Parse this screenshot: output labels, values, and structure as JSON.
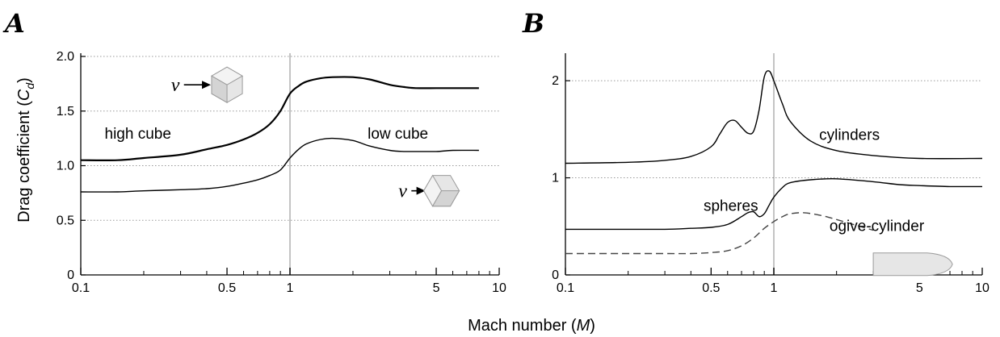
{
  "x_axis_title": {
    "prefix": "Mach number (",
    "symbol": "M",
    "suffix": ")"
  },
  "y_axis_title": {
    "prefix": "Drag coefficient (",
    "symbol": "C",
    "subscript": "d",
    "suffix": ")"
  },
  "chart_data": [
    {
      "panel": "A",
      "type": "line",
      "x_scale": "log",
      "xlim": [
        0.1,
        10
      ],
      "ylim": [
        0,
        2.0
      ],
      "x_ticks": [
        0.1,
        0.5,
        1,
        5,
        10
      ],
      "x_tick_labels": [
        "0.1",
        "0.5",
        "1",
        "5",
        "10"
      ],
      "y_ticks": [
        0,
        0.5,
        1.0,
        1.5,
        2.0
      ],
      "y_tick_labels": [
        "0",
        "0.5",
        "1.0",
        "1.5",
        "2.0"
      ],
      "grid": "horizontal dotted",
      "reference_line_x": 1,
      "series": [
        {
          "name": "high cube",
          "style": "solid-thick",
          "x": [
            0.1,
            0.15,
            0.2,
            0.3,
            0.4,
            0.5,
            0.6,
            0.7,
            0.8,
            0.9,
            1.0,
            1.1,
            1.2,
            1.4,
            1.6,
            2.0,
            2.4,
            3.0,
            3.5,
            4.0,
            5.0,
            6.0,
            8.0
          ],
          "y": [
            1.05,
            1.05,
            1.07,
            1.1,
            1.15,
            1.19,
            1.24,
            1.3,
            1.38,
            1.5,
            1.66,
            1.73,
            1.77,
            1.8,
            1.81,
            1.81,
            1.79,
            1.74,
            1.72,
            1.71,
            1.71,
            1.71,
            1.71
          ]
        },
        {
          "name": "low cube",
          "style": "solid",
          "x": [
            0.1,
            0.15,
            0.2,
            0.3,
            0.4,
            0.5,
            0.6,
            0.7,
            0.8,
            0.9,
            1.0,
            1.1,
            1.2,
            1.4,
            1.6,
            2.0,
            2.4,
            3.0,
            3.5,
            4.0,
            5.0,
            6.0,
            8.0
          ],
          "y": [
            0.76,
            0.76,
            0.77,
            0.78,
            0.79,
            0.81,
            0.84,
            0.87,
            0.91,
            0.96,
            1.07,
            1.15,
            1.2,
            1.24,
            1.25,
            1.23,
            1.18,
            1.14,
            1.13,
            1.13,
            1.13,
            1.14,
            1.14
          ]
        }
      ],
      "annotations": [
        {
          "text": "high cube",
          "x": 0.13,
          "y": 1.3
        },
        {
          "text": "low cube",
          "x": 2.35,
          "y": 1.3
        }
      ],
      "flow_labels": [
        {
          "text": "v",
          "x": 0.27,
          "y": 1.74,
          "cube": "high",
          "cube_x": 0.5,
          "cube_y": 1.74
        },
        {
          "text": "v",
          "x": 3.3,
          "y": 0.77,
          "cube": "low",
          "cube_x": 5.3,
          "cube_y": 0.77
        }
      ]
    },
    {
      "panel": "B",
      "type": "line",
      "x_scale": "log",
      "xlim": [
        0.1,
        10
      ],
      "ylim": [
        0,
        2.25
      ],
      "x_ticks": [
        0.1,
        0.5,
        1,
        5,
        10
      ],
      "x_tick_labels": [
        "0.1",
        "0.5",
        "1",
        "5",
        "10"
      ],
      "y_ticks": [
        0,
        1,
        2
      ],
      "y_tick_labels": [
        "0",
        "1",
        "2"
      ],
      "grid": "horizontal dotted",
      "reference_line_x": 1,
      "series": [
        {
          "name": "cylinders",
          "style": "solid",
          "x": [
            0.1,
            0.2,
            0.3,
            0.4,
            0.5,
            0.55,
            0.6,
            0.65,
            0.7,
            0.75,
            0.8,
            0.85,
            0.9,
            0.95,
            1.0,
            1.1,
            1.2,
            1.5,
            2.0,
            3.0,
            5.0,
            10.0
          ],
          "y": [
            1.15,
            1.16,
            1.18,
            1.22,
            1.32,
            1.45,
            1.57,
            1.59,
            1.52,
            1.46,
            1.48,
            1.7,
            2.04,
            2.1,
            2.0,
            1.76,
            1.58,
            1.38,
            1.28,
            1.23,
            1.2,
            1.2
          ]
        },
        {
          "name": "spheres",
          "style": "solid",
          "x": [
            0.1,
            0.2,
            0.3,
            0.4,
            0.5,
            0.6,
            0.7,
            0.75,
            0.8,
            0.85,
            0.9,
            0.95,
            1.0,
            1.1,
            1.2,
            1.5,
            2.0,
            3.0,
            4.0,
            5.0,
            7.0,
            10.0
          ],
          "y": [
            0.47,
            0.47,
            0.47,
            0.48,
            0.49,
            0.52,
            0.6,
            0.64,
            0.65,
            0.6,
            0.63,
            0.72,
            0.8,
            0.9,
            0.95,
            0.98,
            0.99,
            0.96,
            0.93,
            0.92,
            0.91,
            0.91
          ]
        },
        {
          "name": "ogive-cylinder",
          "style": "dashed",
          "x": [
            0.1,
            0.2,
            0.3,
            0.4,
            0.5,
            0.6,
            0.7,
            0.8,
            0.9,
            1.0,
            1.1,
            1.2,
            1.4,
            1.7,
            2.0,
            2.5,
            3.0
          ],
          "y": [
            0.22,
            0.22,
            0.22,
            0.22,
            0.23,
            0.25,
            0.3,
            0.38,
            0.48,
            0.55,
            0.6,
            0.63,
            0.64,
            0.61,
            0.57,
            0.51,
            0.46
          ]
        }
      ],
      "annotations": [
        {
          "text": "cylinders",
          "x": 1.65,
          "y": 1.45
        },
        {
          "text": "spheres",
          "x": 0.46,
          "y": 0.72
        },
        {
          "text": "ogive-cylinder",
          "x": 1.85,
          "y": 0.51
        }
      ],
      "shape_icon": {
        "name": "ogive-cylinder",
        "x_from": 3.0,
        "x_to": 7.2,
        "y": 0.11
      }
    }
  ]
}
